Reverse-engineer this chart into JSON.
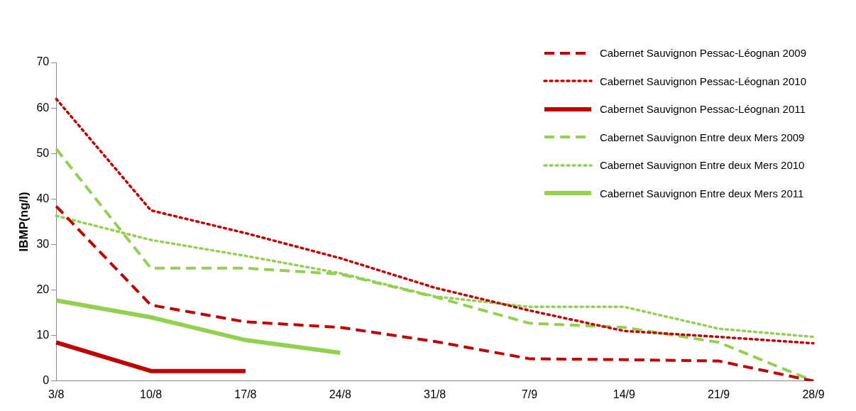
{
  "chart_data": {
    "type": "line",
    "ylabel": "IBMP(ng/l)",
    "categories": [
      "3/8",
      "10/8",
      "17/8",
      "24/8",
      "31/8",
      "7/9",
      "14/9",
      "21/9",
      "28/9"
    ],
    "series": [
      {
        "name": "Cabernet Sauvignon Pessac-Léognan 2009",
        "color": "#c00000",
        "line_style": "dashed",
        "values": [
          38.4,
          16.7,
          13,
          11.8,
          8.7,
          4.9,
          4.7,
          4.4,
          0
        ]
      },
      {
        "name": "Cabernet Sauvignon Pessac-Léognan 2010",
        "color": "#c00000",
        "line_style": "dotted",
        "values": [
          62,
          37.5,
          32.5,
          27,
          20.5,
          15.5,
          11,
          9.7,
          8.3
        ]
      },
      {
        "name": "Cabernet Sauvignon Pessac-Léognan 2011",
        "color": "#c00000",
        "line_style": "solid",
        "values": [
          8.5,
          2.2,
          2.2,
          null,
          null,
          null,
          null,
          null,
          null
        ]
      },
      {
        "name": "Cabernet Sauvignon Entre deux Mers 2009",
        "color": "#92d050",
        "line_style": "dashed",
        "values": [
          51,
          24.8,
          24.8,
          23.5,
          18.5,
          12.7,
          11.8,
          8.5,
          0
        ]
      },
      {
        "name": "Cabernet Sauvignon Entre deux Mers 2010",
        "color": "#92d050",
        "line_style": "dotted",
        "values": [
          36.3,
          31,
          27.5,
          23.7,
          18.6,
          16.3,
          16.3,
          11.5,
          9.7
        ]
      },
      {
        "name": "Cabernet Sauvignon Entre deux Mers 2011",
        "color": "#92d050",
        "line_style": "solid",
        "values": [
          17.7,
          14,
          9,
          6.2,
          null,
          null,
          null,
          null,
          null
        ]
      }
    ],
    "ylim": [
      0,
      70
    ],
    "yticks": [
      0,
      10,
      20,
      30,
      40,
      50,
      60,
      70
    ],
    "grid": false,
    "legend": "top right",
    "marker": "none"
  }
}
